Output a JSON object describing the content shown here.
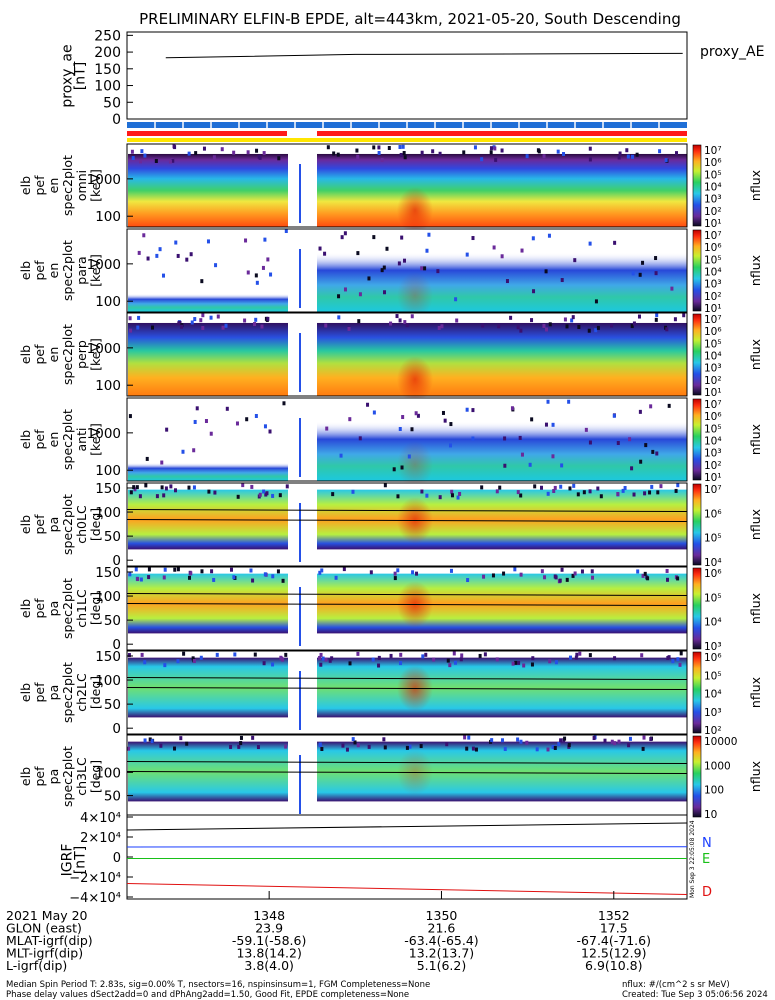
{
  "title": "PRELIMINARY ELFIN-B EPDE, alt=443km, 2021-05-20, South Descending",
  "colors": {
    "ae_line": "#000000",
    "bar_blue": "#1f6fd6",
    "bar_red": "#ff1a1a",
    "bar_yellow": "#ffe600",
    "grf_n": "#1a3dff",
    "grf_e": "#18c018",
    "grf_d": "#e01010"
  },
  "panels": {
    "ae": {
      "ylabel": "proxy_ae\n[nT]",
      "yticks": [
        "250",
        "200",
        "150",
        "100",
        "50",
        "0"
      ],
      "legend": "proxy_AE"
    },
    "spec": [
      {
        "ylabel": "elb\npef\nen\nspec2plot\nomni\n[keV]",
        "yticks": [
          "1000",
          "100"
        ],
        "cbar_label": "nflux",
        "cbar_ticks": [
          "10⁷",
          "10⁶",
          "10⁵",
          "10⁴",
          "10³",
          "10²",
          "10¹"
        ]
      },
      {
        "ylabel": "elb\npef\nen\nspec2plot\npara\n[keV]",
        "yticks": [
          "1000",
          "100"
        ],
        "cbar_label": "nflux",
        "cbar_ticks": [
          "10⁷",
          "10⁶",
          "10⁵",
          "10⁴",
          "10³",
          "10²",
          "10¹"
        ]
      },
      {
        "ylabel": "elb\npef\nen\nspec2plot\nperp\n[keV]",
        "yticks": [
          "1000",
          "100"
        ],
        "cbar_label": "nflux",
        "cbar_ticks": [
          "10⁷",
          "10⁶",
          "10⁵",
          "10⁴",
          "10³",
          "10²",
          "10¹"
        ]
      },
      {
        "ylabel": "elb\npef\nen\nspec2plot\nanti\n[keV]",
        "yticks": [
          "1000",
          "100"
        ],
        "cbar_label": "nflux",
        "cbar_ticks": [
          "10⁷",
          "10⁶",
          "10⁵",
          "10⁴",
          "10³",
          "10²",
          "10¹"
        ]
      },
      {
        "ylabel": "elb\npef\npa\nspec2plot\nch0LC\n[deg]",
        "yticks": [
          "150",
          "100",
          "50",
          "0"
        ],
        "cbar_label": "nflux",
        "cbar_ticks": [
          "10⁷",
          "10⁶",
          "10⁵",
          "10⁴"
        ]
      },
      {
        "ylabel": "elb\npef\npa\nspec2plot\nch1LC\n[deg]",
        "yticks": [
          "150",
          "100",
          "50",
          "0"
        ],
        "cbar_label": "nflux",
        "cbar_ticks": [
          "10⁶",
          "10⁵",
          "10⁴",
          "10³"
        ]
      },
      {
        "ylabel": "elb\npef\npa\nspec2plot\nch2LC\n[deg]",
        "yticks": [
          "150",
          "100",
          "50",
          "0"
        ],
        "cbar_label": "nflux",
        "cbar_ticks": [
          "10⁶",
          "10⁵",
          "10⁴",
          "10³",
          "10²"
        ]
      },
      {
        "ylabel": "elb\npef\npa\nspec2plot\nch3LC\n[deg]",
        "yticks": [
          "100",
          "50"
        ],
        "cbar_label": "nflux",
        "cbar_ticks": [
          "10000",
          "1000",
          "100",
          "10"
        ]
      }
    ],
    "grf": {
      "ylabel": "IGRF\n[nT]",
      "yticks": [
        "4×10⁴",
        "2×10⁴",
        "0",
        "−2×10⁴",
        "−4×10⁴"
      ],
      "legend": [
        "N",
        "E",
        "D"
      ],
      "stamp": "Mon Sep 3 22:05:08 2024"
    }
  },
  "xaxis": {
    "rows": [
      {
        "label": "2021 May 20",
        "values": [
          "1348",
          "1350",
          "1352"
        ]
      },
      {
        "label": "GLON (east)",
        "values": [
          "23.9",
          "21.6",
          "17.5"
        ]
      },
      {
        "label": "MLAT-igrf(dip)",
        "values": [
          "-59.1(-58.6)",
          "-63.4(-65.4)",
          "-67.4(-71.6)"
        ]
      },
      {
        "label": "MLT-igrf(dip)",
        "values": [
          "13.8(14.2)",
          "13.2(13.7)",
          "12.5(12.9)"
        ]
      },
      {
        "label": "L-igrf(dip)",
        "values": [
          "3.8(4.0)",
          "5.1(6.2)",
          "6.9(10.8)"
        ]
      }
    ]
  },
  "footer": {
    "line1_left": "Median Spin Period T: 2.83s, sig=0.00% T, nsectors=16, nspinsinsum=1, FGM Completeness=None",
    "line2_left": "Phase delay values dSect2add=0 and dPhAng2add=1.50, Good Fit, EPDE completeness=None",
    "line1_right": "nflux: #/(cm^2 s sr MeV)",
    "line2_right": "Created: Tue Sep  3 05:06:56 2024"
  },
  "chart_data": [
    {
      "type": "line",
      "title": "PRELIMINARY ELFIN-B EPDE, alt=443km, 2021-05-20, South Descending",
      "ylabel": "proxy_ae [nT]",
      "ylim": [
        0,
        260
      ],
      "series": [
        {
          "name": "proxy_AE",
          "x": [
            "1346.8",
            "1349.0",
            "1352.8"
          ],
          "values": [
            183,
            193,
            196
          ]
        }
      ]
    },
    {
      "type": "heatmap",
      "ylabel": "energy [keV]",
      "scale": "log",
      "ylim": [
        60,
        7000
      ],
      "colorbar": "nflux",
      "note": "electron energy spectrograms (omni, para, perp, anti); data gap near 1348.6"
    },
    {
      "type": "heatmap",
      "ylabel": "pitch angle [deg]",
      "ylim": [
        0,
        180
      ],
      "colorbar": "nflux",
      "note": "pitch-angle spectrograms ch0LC–ch3LC"
    },
    {
      "type": "line",
      "ylabel": "IGRF [nT]",
      "ylim": [
        -42000,
        42000
      ],
      "series": [
        {
          "name": "N",
          "values": [
            10000,
            10300
          ]
        },
        {
          "name": "E",
          "values": [
            -1500,
            -1500
          ]
        },
        {
          "name": "D",
          "values": [
            -26500,
            -37500
          ]
        },
        {
          "name": "",
          "values": [
            27000,
            34000
          ]
        }
      ]
    }
  ]
}
